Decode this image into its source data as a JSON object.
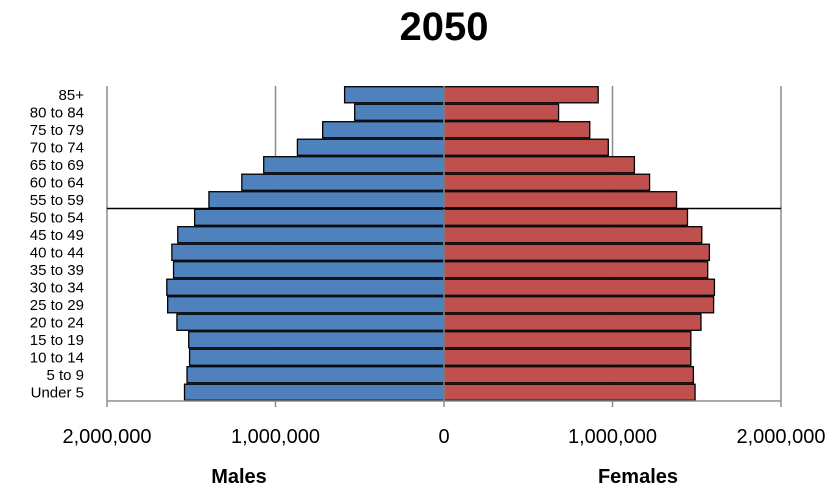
{
  "chart_data": {
    "type": "bar",
    "orientation": "horizontal",
    "title": "2050",
    "categories": [
      "Under 5",
      "5 to 9",
      "10 to 14",
      "15 to 19",
      "20 to 24",
      "25 to 29",
      "30 to 34",
      "35 to 39",
      "40 to 44",
      "45 to 49",
      "50 to 54",
      "55 to 59",
      "60 to 64",
      "65 to 69",
      "70 to 74",
      "75 to 79",
      "80 to 84",
      "85+"
    ],
    "series": [
      {
        "name": "Males",
        "color": "#4F81BD",
        "values": [
          1540000,
          1525000,
          1510000,
          1515000,
          1585000,
          1640000,
          1645000,
          1605000,
          1615000,
          1580000,
          1480000,
          1395000,
          1200000,
          1070000,
          870000,
          720000,
          530000,
          590000
        ]
      },
      {
        "name": "Females",
        "color": "#C0504D",
        "values": [
          1490000,
          1480000,
          1465000,
          1465000,
          1525000,
          1600000,
          1605000,
          1565000,
          1575000,
          1530000,
          1445000,
          1380000,
          1220000,
          1130000,
          975000,
          865000,
          680000,
          915000
        ]
      }
    ],
    "xlim": [
      -2000000,
      2000000
    ],
    "xticks": [
      "2,000,000",
      "1,000,000",
      "0",
      "1,000,000",
      "2,000,000"
    ],
    "xtick_values": [
      -2000000,
      -1000000,
      0,
      1000000,
      2000000
    ],
    "axis_labels": {
      "left": "Males",
      "right": "Females"
    },
    "reference_line_between": [
      "50 to 54",
      "55 to 59"
    ],
    "grid": true
  }
}
